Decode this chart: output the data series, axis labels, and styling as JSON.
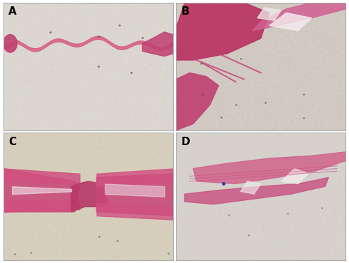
{
  "figure_width": 5.0,
  "figure_height": 3.77,
  "dpi": 100,
  "panels": [
    "A",
    "B",
    "C",
    "D"
  ],
  "label_fontsize": 11,
  "label_fontweight": "bold",
  "label_color": "#000000",
  "border_color": "#aaaaaa",
  "border_linewidth": 0.8,
  "bg_color_A": "#d8d4ce",
  "bg_color_B": "#ccc9c2",
  "bg_color_C": "#cfc9b8",
  "bg_color_D": "#d0ccc4",
  "tissue_color_pink": "#d9577a",
  "tissue_color_dark_pink": "#c03060",
  "tissue_color_magenta": "#b02060",
  "tissue_color_light": "#e8a0b8",
  "tissue_color_white": "#f0ecea"
}
